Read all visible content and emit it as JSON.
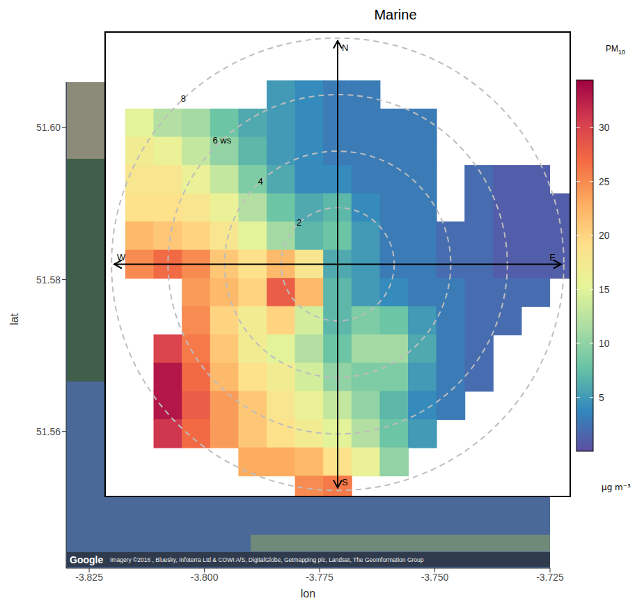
{
  "chart_data": {
    "type": "heatmap",
    "title": "Marine",
    "x_label": "lon",
    "y_label": "lat",
    "xlim": [
      -3.83,
      -3.725
    ],
    "xticks": [
      -3.825,
      {
        "value": -3.8,
        "label": "-3.800"
      },
      -3.775,
      {
        "value": -3.75,
        "label": "-3.750"
      },
      -3.725
    ],
    "ylim": [
      51.542,
      51.606
    ],
    "yticks": [
      51.56,
      51.58,
      {
        "value": 51.6,
        "label": "51.60"
      }
    ],
    "grid": false,
    "attribution": [
      "Google",
      "Imagery ©2016 , Bluesky, Infoterra Ltd & COWI A/S, DigitalGlobe, Getmapping plc, Landsat, The GeoInformation Group"
    ],
    "polar": {
      "xlim": [
        -8.2,
        8.2
      ],
      "ylim": [
        -8.2,
        8.2
      ],
      "tick_labels": false,
      "rings": [
        2,
        4,
        {
          "value": 6,
          "label": "6 ws"
        },
        8
      ],
      "directions": [
        "N",
        "E",
        "S",
        "W"
      ],
      "u": [
        -8,
        -7,
        -6,
        -5,
        -4,
        -3,
        -2,
        -1,
        0,
        1,
        2,
        3,
        4,
        5,
        6,
        7,
        8
      ],
      "v": [
        8,
        7,
        6,
        5,
        4,
        3,
        2,
        1,
        0,
        -1,
        -2,
        -3,
        -4,
        -5,
        -6,
        -7,
        -8
      ],
      "values": [
        [
          null,
          null,
          null,
          null,
          null,
          null,
          null,
          null,
          null,
          null,
          null,
          null,
          null,
          null,
          null,
          null,
          null
        ],
        [
          null,
          null,
          null,
          null,
          null,
          null,
          null,
          null,
          null,
          null,
          null,
          null,
          null,
          null,
          null,
          null,
          null
        ],
        [
          null,
          null,
          null,
          null,
          null,
          null,
          5,
          4,
          3,
          3,
          null,
          null,
          null,
          null,
          null,
          null,
          null
        ],
        [
          null,
          15,
          12,
          11,
          8,
          6,
          5,
          4,
          3,
          3,
          3,
          3,
          null,
          null,
          null,
          null,
          null
        ],
        [
          null,
          17,
          16,
          13,
          10,
          7,
          5,
          4,
          3,
          3,
          3,
          3,
          null,
          null,
          null,
          null,
          null
        ],
        [
          null,
          18,
          18,
          16,
          13,
          9,
          6,
          4,
          4,
          3,
          3,
          3,
          null,
          2,
          1,
          1,
          null
        ],
        [
          null,
          19,
          19,
          18,
          16,
          12,
          8,
          6,
          7,
          4,
          3,
          3,
          null,
          2,
          1,
          1,
          1
        ],
        [
          null,
          22,
          21,
          20,
          18,
          15,
          11,
          7,
          8,
          5,
          3,
          3,
          2,
          2,
          1,
          1,
          1
        ],
        [
          null,
          25,
          27,
          25,
          21,
          19,
          22,
          18,
          6,
          5,
          3,
          3,
          2,
          2,
          1,
          1,
          1
        ],
        [
          null,
          null,
          null,
          24,
          22,
          20,
          28,
          22,
          7,
          5,
          4,
          3,
          3,
          2,
          2,
          2,
          null
        ],
        [
          null,
          null,
          null,
          25,
          20,
          17,
          20,
          14,
          7,
          9,
          8,
          5,
          3,
          2,
          2,
          null,
          null
        ],
        [
          null,
          null,
          30,
          26,
          21,
          17,
          15,
          12,
          8,
          11,
          11,
          6,
          3,
          2,
          null,
          null,
          null
        ],
        [
          null,
          null,
          33,
          27,
          22,
          19,
          17,
          14,
          10,
          9,
          9,
          5,
          3,
          2,
          null,
          null,
          null
        ],
        [
          null,
          null,
          33,
          28,
          24,
          21,
          18,
          16,
          13,
          10,
          7,
          4,
          3,
          null,
          null,
          null,
          null
        ],
        [
          null,
          null,
          31,
          27,
          24,
          21,
          19,
          17,
          15,
          12,
          8,
          5,
          null,
          null,
          null,
          null,
          null
        ],
        [
          null,
          null,
          null,
          null,
          null,
          23,
          23,
          22,
          19,
          16,
          10,
          null,
          null,
          null,
          null,
          null,
          null
        ],
        [
          null,
          null,
          null,
          null,
          null,
          null,
          null,
          25,
          26,
          null,
          null,
          null,
          null,
          null,
          null,
          null,
          null
        ]
      ]
    },
    "colorbar": {
      "title": "PM10",
      "unit": "µg m⁻³",
      "range": [
        0,
        34.4
      ],
      "ticks": [
        5,
        10,
        15,
        20,
        25,
        30
      ],
      "colors": [
        "#5e4fa2",
        "#3288bd",
        "#66c2a5",
        "#abdda4",
        "#e6f598",
        "#fee08b",
        "#fdae61",
        "#f46d43",
        "#d53e4f",
        "#9e0142"
      ]
    }
  }
}
